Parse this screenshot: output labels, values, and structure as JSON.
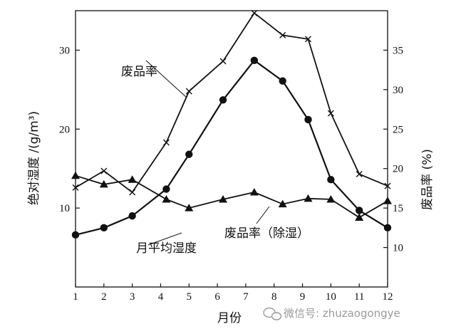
{
  "chart_data": {
    "type": "line",
    "xlabel": "月份",
    "ylabel_left": "绝对湿度 /(g/m³)",
    "ylabel_right": "废品率 (%)",
    "x": [
      1,
      2,
      3,
      4,
      5,
      6,
      7,
      8,
      9,
      10,
      11,
      12
    ],
    "x_ticks": [
      "1",
      "2",
      "3",
      "4",
      "5",
      "6",
      "7",
      "8",
      "9",
      "10",
      "11",
      "12"
    ],
    "ylim_left": [
      0,
      35
    ],
    "yticks_left": [
      "10",
      "20",
      "30"
    ],
    "ylim_right": [
      5,
      40
    ],
    "yticks_right": [
      "10",
      "15",
      "20",
      "25",
      "30",
      "35"
    ],
    "grid": false,
    "series": [
      {
        "name": "废品率",
        "axis": "right",
        "marker": "x",
        "x": [
          1,
          2,
          3,
          4.2,
          5,
          6.2,
          7.3,
          8.3,
          9.2,
          10,
          11,
          12
        ],
        "values": [
          17.6,
          19.7,
          17.0,
          23.3,
          29.8,
          33.6,
          39.7,
          36.9,
          36.4,
          27.0,
          19.3,
          17.8
        ]
      },
      {
        "name": "月平均湿度",
        "axis": "left",
        "marker": "circle",
        "x": [
          1,
          2,
          3,
          4.2,
          5,
          6.2,
          7.3,
          8.3,
          9.2,
          10,
          11,
          12
        ],
        "values": [
          6.6,
          7.5,
          9.0,
          12.4,
          16.8,
          23.7,
          28.7,
          26.1,
          21.2,
          13.6,
          9.7,
          7.5
        ]
      },
      {
        "name": "废品率（除湿）",
        "axis": "right",
        "marker": "triangle",
        "x": [
          1,
          2,
          3,
          4.2,
          5,
          6.2,
          7.3,
          8.3,
          9.2,
          10,
          11,
          12
        ],
        "values": [
          19.1,
          18.0,
          18.6,
          16.1,
          15.0,
          16.1,
          17.0,
          15.5,
          16.2,
          16.1,
          13.8,
          15.9
        ]
      }
    ],
    "annotations": [
      "废品率",
      "月平均湿度",
      "废品率（除湿）"
    ]
  },
  "watermark": {
    "text": "微信号: zhuzaogongye",
    "icon": "wechat-icon"
  }
}
